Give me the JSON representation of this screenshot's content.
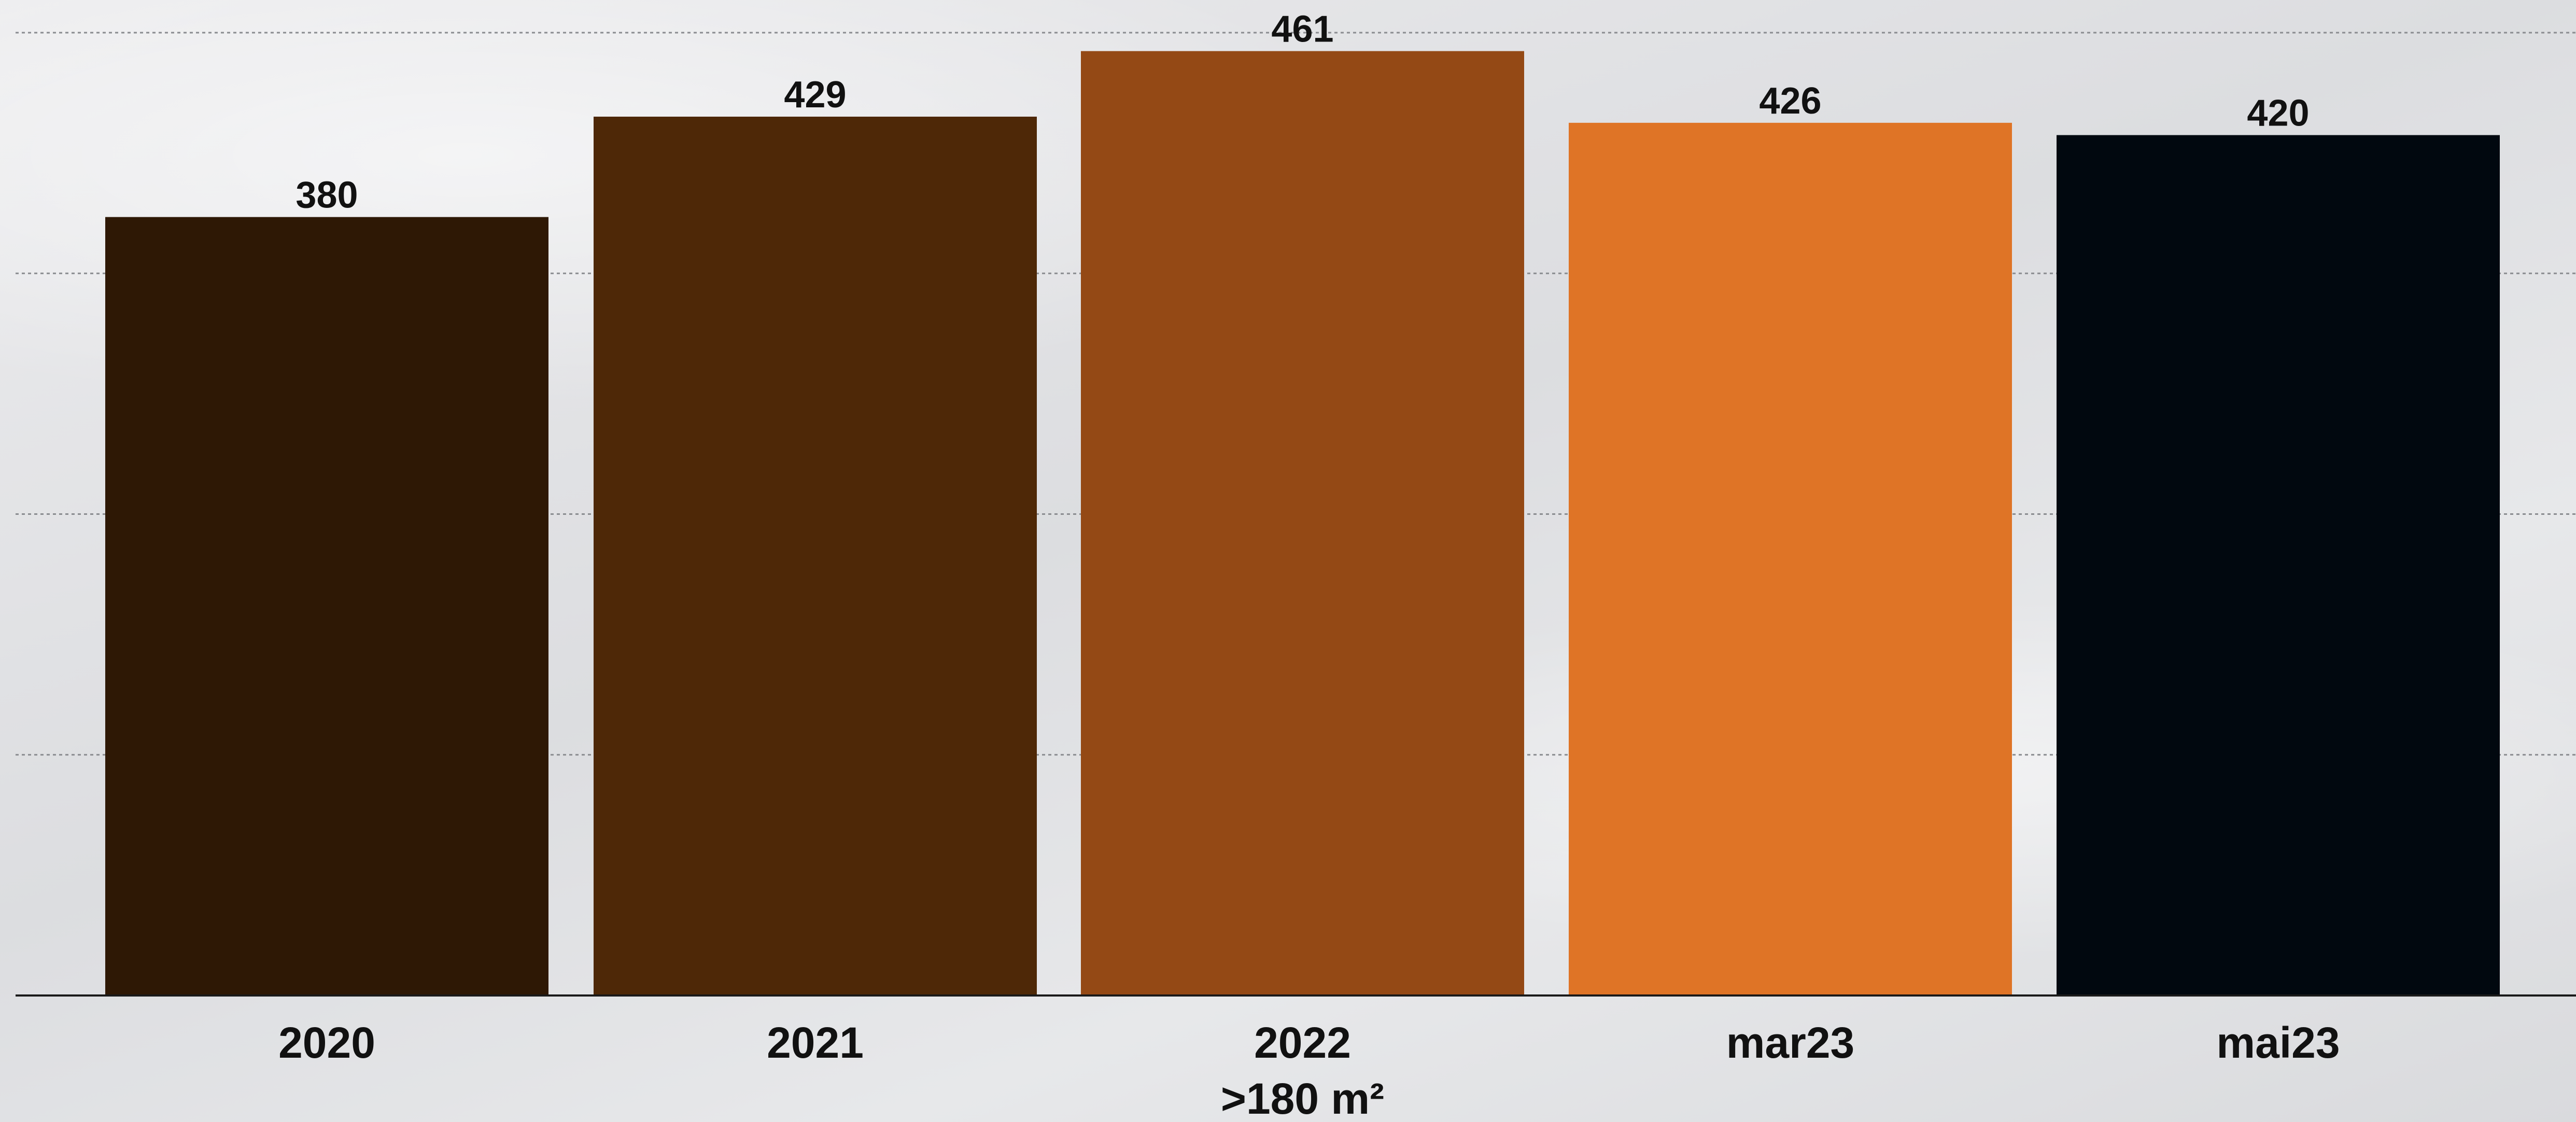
{
  "chart_data": {
    "type": "bar",
    "categories": [
      "2020",
      "2021",
      "2022",
      "mar23",
      "mai23"
    ],
    "values": [
      380,
      429,
      461,
      426,
      420
    ],
    "data_labels": [
      "380",
      "429",
      "461",
      "426",
      "420"
    ],
    "colors": [
      "#2e1805",
      "#4e2807",
      "#944915",
      "#df7426",
      "#01080f"
    ],
    "title": "",
    "xlabel": ">180 m²",
    "ylabel": "",
    "ylim": [
      0,
      470
    ],
    "gridlines": [
      0,
      117.5,
      235,
      352.5,
      470
    ],
    "grid": true,
    "legend": "none"
  }
}
